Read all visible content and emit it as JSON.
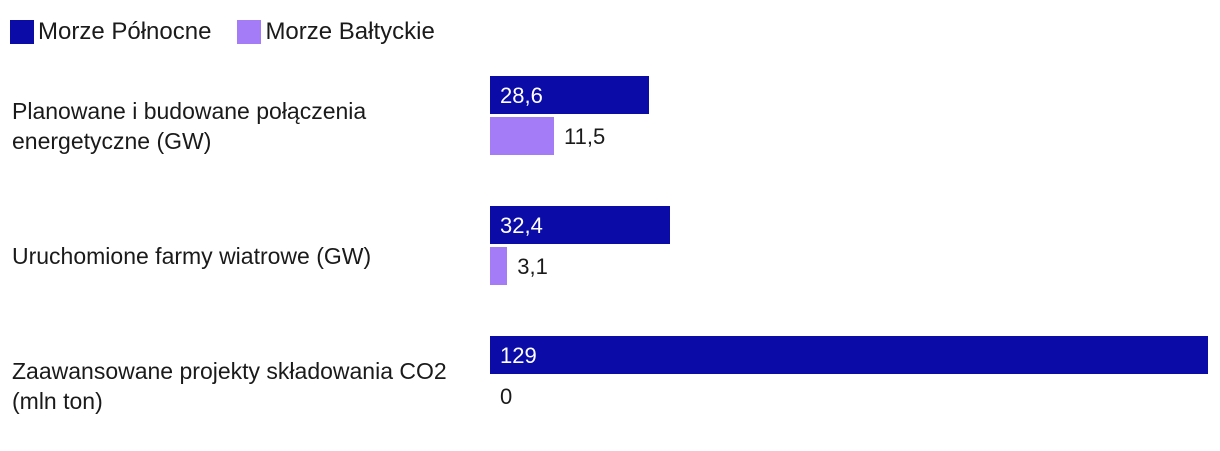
{
  "chart_data": {
    "type": "bar",
    "orientation": "horizontal",
    "categories": [
      "Planowane i budowane połączenia energetyczne (GW)",
      "Uruchomione farmy wiatrowe (GW)",
      "Zaawansowane projekty składowania CO2 (mln ton)"
    ],
    "series": [
      {
        "name": "Morze Północne",
        "color": "#0b0ca8",
        "values": [
          28.6,
          32.4,
          129
        ],
        "value_labels": [
          "28,6",
          "32,4",
          "129"
        ]
      },
      {
        "name": "Morze Bałtyckie",
        "color": "#a57cf7",
        "values": [
          11.5,
          3.1,
          0
        ],
        "value_labels": [
          "11,5",
          "3,1",
          "0"
        ]
      }
    ]
  }
}
